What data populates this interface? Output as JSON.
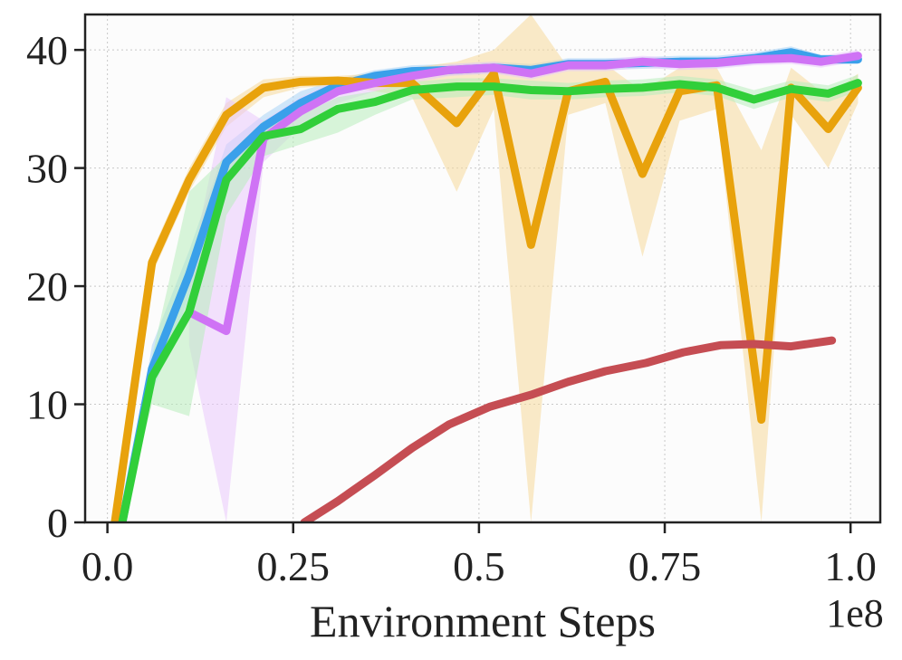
{
  "chart_data": {
    "type": "line",
    "xlabel": "Environment Steps",
    "ylabel": "",
    "x_multiplier_label": "1e8",
    "xlim": [
      -0.03,
      1.04
    ],
    "ylim": [
      0,
      43
    ],
    "grid": true,
    "x_ticks": [
      0.0,
      0.25,
      0.5,
      0.75,
      1.0
    ],
    "x_tick_labels": [
      "0.0",
      "0.25",
      "0.5",
      "0.75",
      "1.0"
    ],
    "y_ticks": [
      0,
      10,
      20,
      30,
      40
    ],
    "y_tick_labels": [
      "0",
      "10",
      "20",
      "30",
      "40"
    ],
    "series": [
      {
        "color": "#3aa0ea",
        "band_color": "#a9d4f6",
        "x": [
          0.02,
          0.06,
          0.11,
          0.16,
          0.21,
          0.26,
          0.31,
          0.36,
          0.41,
          0.46,
          0.52,
          0.57,
          0.62,
          0.67,
          0.72,
          0.77,
          0.82,
          0.87,
          0.92,
          0.96,
          1.01
        ],
        "y": [
          0,
          13,
          21,
          30.5,
          33.5,
          35.5,
          37,
          37.8,
          38.2,
          38.3,
          38.5,
          38.3,
          38.8,
          38.8,
          38.9,
          39.0,
          39.0,
          39.3,
          39.8,
          39.2,
          39.2
        ],
        "lower": [
          0,
          11,
          19,
          29,
          32.5,
          34.5,
          36.5,
          37.3,
          37.7,
          37.8,
          38.0,
          37.8,
          38.3,
          38.3,
          38.4,
          38.5,
          38.5,
          38.8,
          39.2,
          38.8,
          38.8
        ],
        "upper": [
          0,
          15,
          23,
          32,
          34.5,
          36.5,
          37.5,
          38.3,
          38.7,
          38.8,
          39.0,
          38.8,
          39.3,
          39.3,
          39.4,
          39.5,
          39.5,
          39.8,
          40.3,
          39.6,
          39.6
        ]
      },
      {
        "color": "#e8a20c",
        "band_color": "#f6d99a",
        "x": [
          0.01,
          0.06,
          0.11,
          0.16,
          0.21,
          0.26,
          0.31,
          0.36,
          0.41,
          0.47,
          0.52,
          0.57,
          0.62,
          0.67,
          0.72,
          0.77,
          0.82,
          0.88,
          0.92,
          0.97,
          1.01
        ],
        "y": [
          0,
          22,
          29,
          34.5,
          36.8,
          37.3,
          37.4,
          37.2,
          37.2,
          33.8,
          38.0,
          23.5,
          36.5,
          37.3,
          29.5,
          36.5,
          37.0,
          8.7,
          36.8,
          33.3,
          36.8
        ],
        "lower": [
          0,
          21,
          28,
          33.5,
          36,
          36.8,
          37,
          36.5,
          36,
          28,
          35,
          0,
          34.5,
          35.5,
          22.5,
          34,
          35,
          0,
          34.5,
          30,
          35.5
        ],
        "upper": [
          0,
          23,
          30,
          35.5,
          37.5,
          37.8,
          37.8,
          38,
          38.5,
          39,
          40,
          43,
          38.5,
          38.8,
          36.5,
          38.5,
          38.5,
          31.5,
          38.5,
          36,
          38
        ]
      },
      {
        "color": "#cf73f5",
        "band_color": "#e9c8fb",
        "x": [
          0.11,
          0.16,
          0.21,
          0.26,
          0.31,
          0.36,
          0.41,
          0.46,
          0.52,
          0.57,
          0.62,
          0.67,
          0.72,
          0.77,
          0.82,
          0.87,
          0.92,
          0.96,
          1.01
        ],
        "y": [
          17.8,
          16.2,
          32.5,
          34.8,
          36.5,
          37.2,
          37.8,
          38.3,
          38.5,
          38.0,
          38.7,
          38.7,
          39.0,
          38.8,
          38.9,
          39.2,
          39.3,
          39.0,
          39.5
        ],
        "lower": [
          15,
          0,
          30.5,
          33.5,
          35.5,
          36.5,
          37.2,
          37.8,
          38.0,
          37.5,
          38.2,
          38.2,
          38.5,
          38.3,
          38.4,
          38.7,
          38.8,
          38.5,
          39.0
        ],
        "upper": [
          21,
          36,
          34,
          36,
          37.5,
          37.8,
          38.3,
          38.8,
          39.0,
          38.5,
          39.2,
          39.2,
          39.5,
          39.3,
          39.4,
          39.7,
          39.8,
          39.5,
          40.0
        ]
      },
      {
        "color": "#31cf3a",
        "band_color": "#b8ecbb",
        "x": [
          0.02,
          0.06,
          0.11,
          0.16,
          0.21,
          0.26,
          0.31,
          0.36,
          0.41,
          0.47,
          0.52,
          0.57,
          0.62,
          0.67,
          0.72,
          0.77,
          0.82,
          0.87,
          0.92,
          0.97,
          1.01
        ],
        "y": [
          0,
          12.3,
          17.8,
          29.0,
          32.7,
          33.3,
          35.0,
          35.6,
          36.6,
          36.9,
          36.9,
          36.6,
          36.5,
          36.7,
          36.8,
          37.1,
          36.8,
          35.8,
          36.7,
          36.3,
          37.2
        ],
        "lower": [
          0,
          10,
          9,
          26,
          31,
          32,
          33,
          34.5,
          35.8,
          36.0,
          36.2,
          35.8,
          35.8,
          36.0,
          36.1,
          36.4,
          36.1,
          35.0,
          36.0,
          35.6,
          36.5
        ],
        "upper": [
          0,
          14,
          28,
          31,
          34,
          34.5,
          36,
          36.5,
          37.3,
          37.6,
          37.6,
          37.4,
          37.2,
          37.4,
          37.5,
          37.8,
          37.5,
          36.6,
          37.4,
          37.0,
          37.9
        ]
      },
      {
        "color": "#c54d53",
        "band_color": "#e9b0b3",
        "x": [
          0.265,
          0.31,
          0.36,
          0.41,
          0.46,
          0.515,
          0.57,
          0.62,
          0.67,
          0.725,
          0.775,
          0.825,
          0.87,
          0.92,
          0.975
        ],
        "y": [
          0,
          1.8,
          4.0,
          6.3,
          8.3,
          9.8,
          10.8,
          11.9,
          12.8,
          13.5,
          14.4,
          15.0,
          15.1,
          14.9,
          15.4
        ],
        "lower": [
          0,
          1.6,
          3.8,
          6.1,
          8.1,
          9.6,
          10.6,
          11.7,
          12.6,
          13.3,
          14.2,
          14.8,
          14.9,
          14.7,
          15.2
        ],
        "upper": [
          0,
          2.0,
          4.2,
          6.5,
          8.5,
          10.0,
          11.0,
          12.1,
          13.0,
          13.7,
          14.6,
          15.2,
          15.3,
          15.1,
          15.6
        ]
      }
    ]
  }
}
